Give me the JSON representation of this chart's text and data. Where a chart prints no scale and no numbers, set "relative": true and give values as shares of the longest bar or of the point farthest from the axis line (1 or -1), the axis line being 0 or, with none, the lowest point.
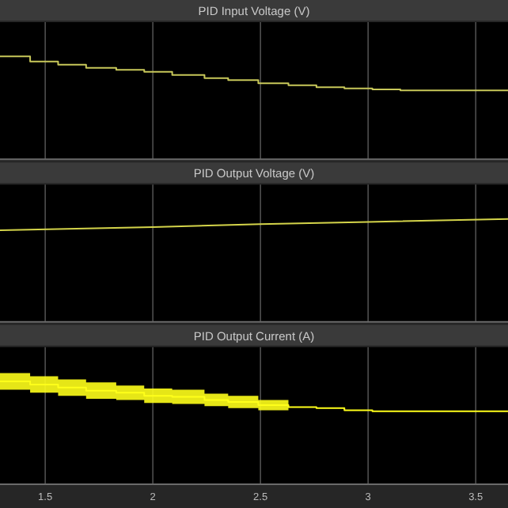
{
  "chart_data": [
    {
      "type": "step",
      "title": "PID Input Voltage (V)",
      "relative": true,
      "xlim": [
        1.29,
        3.65
      ],
      "xticks": [
        1.5,
        2,
        2.5,
        3,
        3.5
      ],
      "tick_labels": false,
      "grid": "x",
      "x": [
        1.29,
        1.43,
        1.56,
        1.69,
        1.83,
        1.96,
        2.09,
        2.24,
        2.35,
        2.49,
        2.63,
        2.76,
        2.89,
        3.02,
        3.15,
        3.65
      ],
      "series": [
        {
          "color": "#c8c85a",
          "values": [
            1,
            0.95,
            0.92,
            0.89,
            0.87,
            0.85,
            0.82,
            0.79,
            0.77,
            0.74,
            0.72,
            0.7,
            0.69,
            0.68,
            0.67,
            0.67
          ]
        }
      ]
    },
    {
      "type": "line",
      "title": "PID Output Voltage (V)",
      "relative": true,
      "xlim": [
        1.29,
        3.65
      ],
      "xticks": [
        1.5,
        2,
        2.5,
        3,
        3.5
      ],
      "tick_labels": false,
      "grid": "x",
      "x": [
        1.29,
        2.0,
        2.5,
        3.0,
        3.65
      ],
      "series": [
        {
          "color": "#d4d44a",
          "values": [
            0.89,
            0.92,
            0.95,
            0.97,
            1
          ]
        }
      ]
    },
    {
      "type": "step",
      "title": "PID Output Current (A)",
      "relative": true,
      "xlim": [
        1.29,
        3.65
      ],
      "xticks": [
        1.5,
        2,
        2.5,
        3,
        3.5
      ],
      "tick_labels": "x",
      "grid": "x",
      "x": [
        1.29,
        1.43,
        1.56,
        1.69,
        1.83,
        1.96,
        2.09,
        2.24,
        2.35,
        2.49,
        2.63,
        2.76,
        2.89,
        3.02,
        3.15,
        3.65
      ],
      "series": [
        {
          "color": "#ffff1a",
          "values": [
            1,
            0.97,
            0.94,
            0.91,
            0.89,
            0.86,
            0.85,
            0.82,
            0.8,
            0.77,
            0.75,
            0.74,
            0.72,
            0.71,
            0.71,
            0.71
          ],
          "upper": [
            1.08,
            1.05,
            1.02,
            0.99,
            0.96,
            0.93,
            0.92,
            0.88,
            0.86,
            0.82,
            0.75,
            0.74,
            0.72,
            0.71,
            0.71,
            0.71
          ],
          "lower": [
            0.92,
            0.89,
            0.86,
            0.83,
            0.82,
            0.79,
            0.78,
            0.76,
            0.74,
            0.72,
            0.75,
            0.74,
            0.72,
            0.71,
            0.71,
            0.71
          ]
        }
      ]
    }
  ]
}
